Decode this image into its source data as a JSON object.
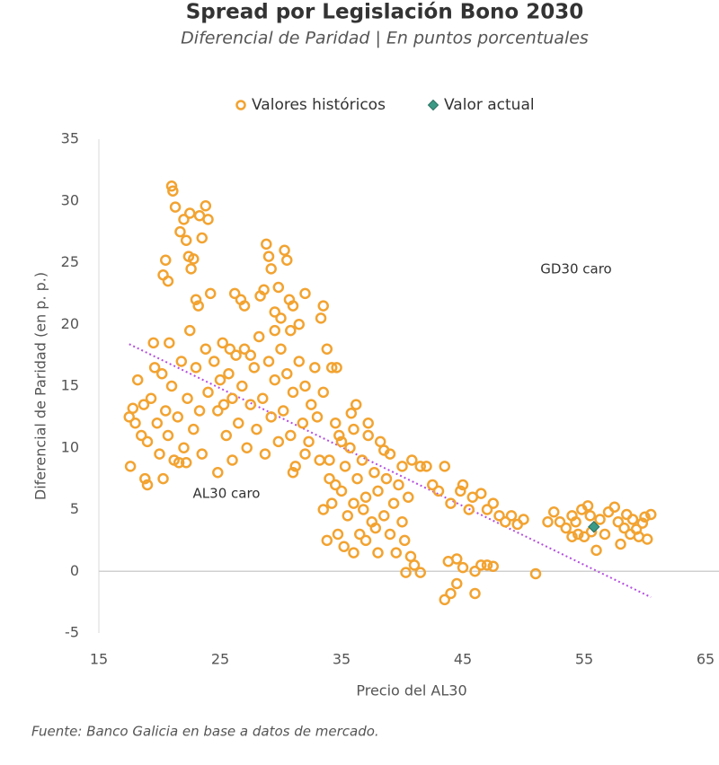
{
  "chart_data": {
    "type": "scatter",
    "title": "Spread por Legislación Bono 2030",
    "subtitle": "Diferencial de Paridad | En puntos porcentuales",
    "x_label": "Precio del AL30",
    "y_label": "Diferencial de Paridad (en p. p.)",
    "annotations": [
      "GD30 caro",
      "AL30 caro"
    ],
    "source": "Fuente: Banco Galicia en base a datos de mercado.",
    "xlim": [
      15,
      65
    ],
    "xticks": [
      15,
      25,
      35,
      45,
      55,
      65
    ],
    "ylim": [
      -5,
      35
    ],
    "yticks": [
      -5,
      0,
      5,
      10,
      15,
      20,
      25,
      30,
      35
    ],
    "grid": false,
    "legend": "top",
    "series": [
      {
        "name": "Valores históricos",
        "color": "#f2a331",
        "marker": "circle",
        "x": [
          17.5,
          17.8,
          18,
          18.2,
          18.5,
          18.7,
          19,
          19,
          19.3,
          19.5,
          19.8,
          20,
          20.2,
          20.5,
          20.7,
          21,
          21.2,
          21.5,
          21.8,
          22,
          22.3,
          22.5,
          22.8,
          23,
          23.3,
          23.5,
          23.8,
          24,
          17.6,
          18.8,
          20.3,
          21.6,
          19.6,
          20.8,
          22.2,
          20.3,
          20.5,
          20.7,
          21,
          21.1,
          21.3,
          21.7,
          22,
          22.2,
          22.5,
          22.6,
          22.8,
          23,
          23.3,
          23.5,
          23.8,
          24,
          23.2,
          24.2,
          22.4,
          24.5,
          24.8,
          25,
          25.2,
          25.5,
          25.7,
          26,
          26,
          26.3,
          26.5,
          26.8,
          27,
          27.2,
          27.5,
          27.8,
          28,
          28.2,
          28.5,
          28.7,
          29,
          29.2,
          29.5,
          29.8,
          30,
          30.2,
          30.5,
          30.8,
          31,
          31.2,
          31.5,
          31.8,
          32,
          32.3,
          32.5,
          32.8,
          33,
          33.2,
          26.2,
          26.7,
          27,
          28.3,
          28.6,
          28.8,
          29,
          29.2,
          29.5,
          29.8,
          30,
          30.3,
          30.5,
          30.7,
          31,
          31.5,
          32,
          33.3,
          33.5,
          29.5,
          30.8,
          25.3,
          24.8,
          27.5,
          25.8,
          33.8,
          34.2,
          34.6,
          32,
          31,
          33.5,
          34,
          34.2,
          34.5,
          34.7,
          34.8,
          35,
          35.2,
          35.3,
          35.5,
          35.7,
          36,
          36,
          36.2,
          36.3,
          36.5,
          36.7,
          37,
          37,
          37.2,
          37.5,
          37.7,
          38,
          38,
          38.2,
          38.5,
          38.7,
          39,
          39,
          39.3,
          39.5,
          39.7,
          40,
          40,
          40.2,
          40.5,
          40.7,
          41,
          40.3,
          41.5,
          41.5,
          40.8,
          34.5,
          35,
          36,
          37.2,
          38.5,
          33.5,
          33.8,
          34,
          36.8,
          37.8,
          35.8,
          43,
          43.5,
          43.5,
          44,
          44,
          44.5,
          44.5,
          44.8,
          45,
          45,
          45.5,
          45.8,
          46,
          46,
          46.5,
          46.5,
          47,
          47,
          47.5,
          47.5,
          48,
          48.5,
          49,
          49.5,
          50,
          51,
          42.5,
          42,
          43.8,
          52,
          52.5,
          53,
          53.5,
          54,
          54.3,
          54.5,
          54.8,
          55,
          55.3,
          55.6,
          56,
          56.3,
          56.7,
          57,
          57.5,
          57.8,
          58,
          58.3,
          58.5,
          58.8,
          59,
          59.3,
          59.5,
          59.8,
          60,
          60.2,
          60.5,
          55.5,
          54
        ],
        "y": [
          12.5,
          13.2,
          12,
          15.5,
          11,
          13.5,
          10.5,
          7,
          14,
          18.5,
          12,
          9.5,
          16,
          13,
          11,
          15,
          9,
          12.5,
          17,
          10,
          14,
          19.5,
          11.5,
          16.5,
          13,
          9.5,
          18,
          14.5,
          8.5,
          7.5,
          7.5,
          8.8,
          16.5,
          18.5,
          8.8,
          24,
          25.2,
          23.5,
          31.2,
          30.8,
          29.5,
          27.5,
          28.5,
          26.8,
          29,
          24.5,
          25.3,
          22,
          28.8,
          27,
          29.6,
          28.5,
          21.5,
          22.5,
          25.5,
          17,
          13,
          15.5,
          18.5,
          11,
          16,
          14,
          9,
          17.5,
          12,
          15,
          18,
          10,
          13.5,
          16.5,
          11.5,
          19,
          14,
          9.5,
          17,
          12.5,
          15.5,
          10.5,
          18,
          13,
          16,
          11,
          14.5,
          8.5,
          17,
          12,
          15,
          10.5,
          13.5,
          16.5,
          12.5,
          9,
          22.5,
          22,
          21.5,
          22.3,
          22.8,
          26.5,
          25.5,
          24.5,
          21,
          23,
          20.5,
          26,
          25.2,
          22,
          21.5,
          20,
          22.5,
          20.5,
          21.5,
          19.5,
          19.5,
          13.5,
          8,
          17.5,
          18,
          18,
          16.5,
          16.5,
          9.5,
          8,
          14.5,
          9,
          5.5,
          7,
          3,
          11,
          6.5,
          2,
          8.5,
          4.5,
          10,
          5.5,
          1.5,
          13.5,
          7.5,
          3,
          9,
          6,
          2.5,
          11,
          4,
          8,
          6.5,
          1.5,
          10.5,
          4.5,
          7.5,
          3,
          9.5,
          5.5,
          1.5,
          7,
          4,
          8.5,
          2.5,
          6,
          1.2,
          0.5,
          -0.1,
          -0.1,
          8.5,
          9,
          12,
          10.5,
          11.5,
          12,
          9.8,
          5,
          2.5,
          7.5,
          5,
          3.5,
          12.8,
          6.5,
          8.5,
          -2.3,
          5.5,
          -1.8,
          1,
          -1,
          6.5,
          0.3,
          7,
          5,
          6,
          -1.8,
          0,
          6.3,
          0.5,
          5,
          0.5,
          5.5,
          0.4,
          4.5,
          4,
          4.5,
          3.8,
          4.2,
          -0.2,
          7,
          8.5,
          0.8,
          4,
          4.8,
          4,
          3.5,
          4.5,
          4,
          3,
          5,
          2.8,
          5.3,
          3.2,
          1.7,
          4.2,
          3,
          4.8,
          5.2,
          4,
          2.2,
          3.5,
          4.6,
          3,
          4.2,
          3.4,
          2.8,
          3.9,
          4.4,
          2.6,
          4.6,
          4.5,
          2.8
        ]
      },
      {
        "name": "Valor actual",
        "color": "#3b9a86",
        "marker": "diamond",
        "x": [
          55.8
        ],
        "y": [
          3.6
        ]
      }
    ],
    "trendline": {
      "color": "#b44ee0",
      "x": [
        17.5,
        60.5
      ],
      "y": [
        18.4,
        -2.1
      ]
    }
  }
}
